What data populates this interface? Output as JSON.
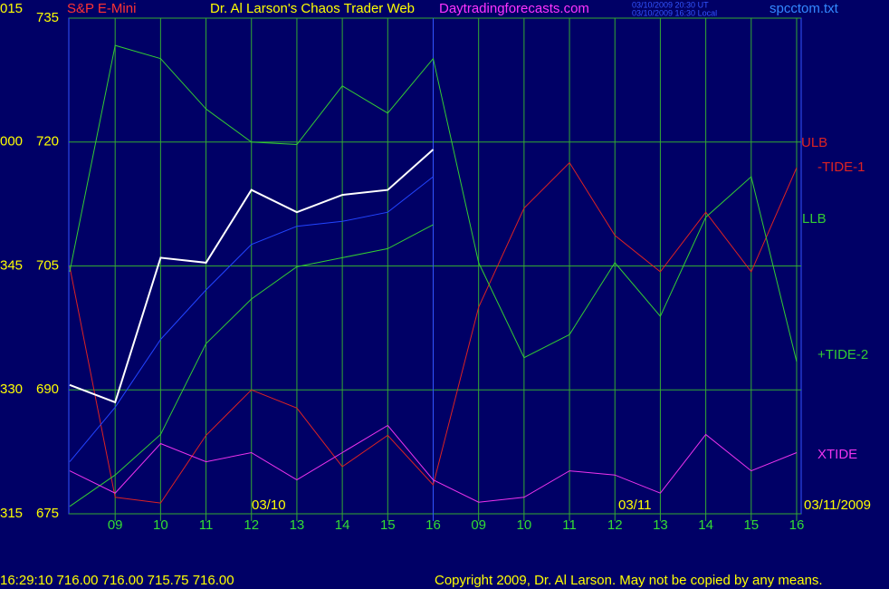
{
  "chart_data": {
    "type": "line",
    "title": "Dr. Al Larson's Chaos Trader Web",
    "instrument": "S&P E-Mini",
    "site": "Daytradingforecasts.com",
    "time_ut": "03/10/2009 20:30 UT",
    "time_local": "03/10/2009 16:30 Local",
    "file": "spcctom.txt",
    "quote": "16:29:10  716.00 716.00 715.75 716.00",
    "copyright": "Copyright 2009, Dr. Al Larson. May not be copied by any means.",
    "dates": [
      "03/10",
      "03/11",
      "03/11/2009"
    ],
    "x": [
      -1,
      0,
      1,
      2,
      3,
      4,
      5,
      6,
      7,
      8,
      9,
      10,
      11,
      12,
      13,
      14,
      15
    ],
    "xlim": [
      -1.02,
      15.1
    ],
    "xticks": [
      {
        "value": 0,
        "label": "09"
      },
      {
        "value": 1,
        "label": "10"
      },
      {
        "value": 2,
        "label": "11"
      },
      {
        "value": 3,
        "label": "12"
      },
      {
        "value": 4,
        "label": "13"
      },
      {
        "value": 5,
        "label": "14"
      },
      {
        "value": 6,
        "label": "15"
      },
      {
        "value": 7,
        "label": "16"
      },
      {
        "value": 8,
        "label": "09"
      },
      {
        "value": 9,
        "label": "10"
      },
      {
        "value": 10,
        "label": "11"
      },
      {
        "value": 11,
        "label": "12"
      },
      {
        "value": 12,
        "label": "13"
      },
      {
        "value": 13,
        "label": "14"
      },
      {
        "value": 14,
        "label": "15"
      },
      {
        "value": 15,
        "label": "16"
      }
    ],
    "ylim": [
      675,
      735
    ],
    "yticks": [
      675,
      690,
      705,
      720,
      735
    ],
    "ytick_alt_labels": [
      "315",
      "330",
      "345",
      "000",
      "015"
    ],
    "grid": true,
    "series": [
      {
        "name": "-TIDE-1",
        "color": "#dd2222",
        "values": [
          704.9,
          677.0,
          676.3,
          684.5,
          690.0,
          687.8,
          680.7,
          684.5,
          678.5,
          700.0,
          712.0,
          717.5,
          708.7,
          704.3,
          711.5,
          704.3,
          716.9
        ]
      },
      {
        "name": "+TIDE-2",
        "color": "#33cc33",
        "values": [
          704.3,
          731.7,
          730.1,
          724.0,
          720.0,
          719.7,
          726.8,
          723.5,
          730.1,
          705.4,
          693.9,
          696.7,
          705.4,
          698.9,
          710.9,
          715.8,
          693.4
        ]
      },
      {
        "name": "LLB",
        "color": "#33cc33",
        "values": [
          675.9,
          679.7,
          684.6,
          695.6,
          701.0,
          704.9,
          706.0,
          707.1,
          710.0,
          null,
          null,
          null,
          null,
          null,
          null,
          null,
          null
        ]
      },
      {
        "name": "XTIDE",
        "color": "#ee33ee",
        "values": [
          680.2,
          677.5,
          683.5,
          681.3,
          682.4,
          679.1,
          682.4,
          685.7,
          679.1,
          676.4,
          677.0,
          680.2,
          679.7,
          677.5,
          684.6,
          680.2,
          682.4
        ]
      }
    ],
    "ulb_label": {
      "text": "ULB",
      "color": "#dd2222"
    },
    "ma": {
      "color": "#2244ff",
      "values": [
        681.3,
        687.9,
        696.1,
        702.1,
        707.6,
        709.8,
        710.4,
        711.5,
        715.8,
        null,
        null,
        null,
        null,
        null,
        null,
        null,
        null
      ]
    },
    "price": {
      "color": "#ffffff",
      "values": [
        690.6,
        688.5,
        706.0,
        705.4,
        714.2,
        711.5,
        713.6,
        714.2,
        719.1,
        null,
        null,
        null,
        null,
        null,
        null,
        null,
        null
      ]
    }
  }
}
